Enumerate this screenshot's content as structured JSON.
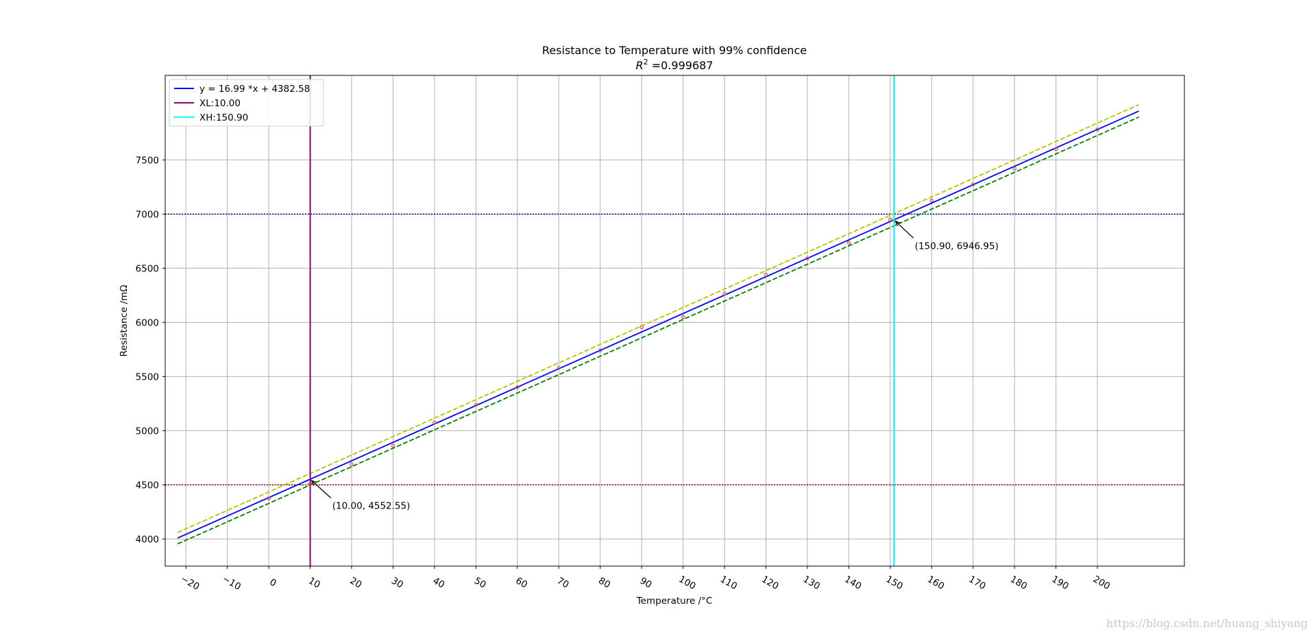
{
  "chart_data": {
    "type": "line",
    "title": "Resistance to Temperature with 99% confidence",
    "subtitle": {
      "r_label": "R",
      "r_exp": "2",
      "r_value": " =0.999687"
    },
    "xlabel": "Temperature /°C",
    "ylabel": "Resistance /mΩ",
    "xlim": [
      -25,
      221
    ],
    "ylim": [
      3750,
      8280
    ],
    "x_ticks": [
      -20,
      -10,
      0,
      10,
      20,
      30,
      40,
      50,
      60,
      70,
      80,
      90,
      100,
      110,
      120,
      130,
      140,
      150,
      160,
      170,
      180,
      190,
      200
    ],
    "x_tick_labels": [
      "−20",
      "−10",
      "0",
      "10",
      "20",
      "30",
      "40",
      "50",
      "60",
      "70",
      "80",
      "90",
      "100",
      "110",
      "120",
      "130",
      "140",
      "150",
      "160",
      "170",
      "180",
      "190",
      "200"
    ],
    "y_ticks": [
      4000,
      4500,
      5000,
      5500,
      6000,
      6500,
      7000,
      7500
    ],
    "y_tick_labels": [
      "4000",
      "4500",
      "5000",
      "5500",
      "6000",
      "6500",
      "7000",
      "7500"
    ],
    "grid": true,
    "legend_position": "top-left",
    "series": [
      {
        "name": "y = 16.99 *x  + 4382.58",
        "kind": "fit",
        "color": "#0000ff",
        "style": "solid",
        "x": [
          -22,
          210
        ],
        "y": [
          4008.8,
          7950.5
        ]
      },
      {
        "kind": "upper-confidence",
        "color": "#bfbf00",
        "style": "dashed",
        "x": [
          -22,
          210
        ],
        "y": [
          4060,
          8010
        ]
      },
      {
        "kind": "lower-confidence",
        "color": "#008000",
        "style": "dashed",
        "x": [
          -22,
          210
        ],
        "y": [
          3955,
          7895
        ]
      }
    ],
    "points": {
      "color": "#e05050",
      "x": [
        0,
        10,
        20,
        30,
        40,
        50,
        60,
        70,
        80,
        90,
        100,
        110,
        120,
        130,
        140,
        150,
        160,
        170,
        180,
        190,
        200
      ],
      "y": [
        4375,
        4510,
        4690,
        4860,
        5075,
        5240,
        5400,
        5580,
        5740,
        5955,
        6050,
        6265,
        6440,
        6590,
        6735,
        6950,
        7125,
        7275,
        7420,
        7600,
        7780
      ]
    },
    "vlines": [
      {
        "name": "XL:10.00",
        "x": 10.0,
        "color": "#800080"
      },
      {
        "name": "XH:150.90",
        "x": 150.9,
        "color": "#00ffff"
      }
    ],
    "hlines": [
      {
        "y": 7000,
        "color": "#00008b",
        "style": "dotted"
      },
      {
        "y": 4500,
        "color": "#8b0000",
        "style": "dotted"
      }
    ],
    "annotations": [
      {
        "text": "(10.00, 4552.55)",
        "x": 10.0,
        "y": 4552.55,
        "text_x": 15.0,
        "text_y": 4290
      },
      {
        "text": "(150.90, 6946.95)",
        "x": 150.9,
        "y": 6946.95,
        "text_x": 155.6,
        "text_y": 6690
      }
    ]
  },
  "watermark": "https://blog.csdn.net/huang_shiyang"
}
